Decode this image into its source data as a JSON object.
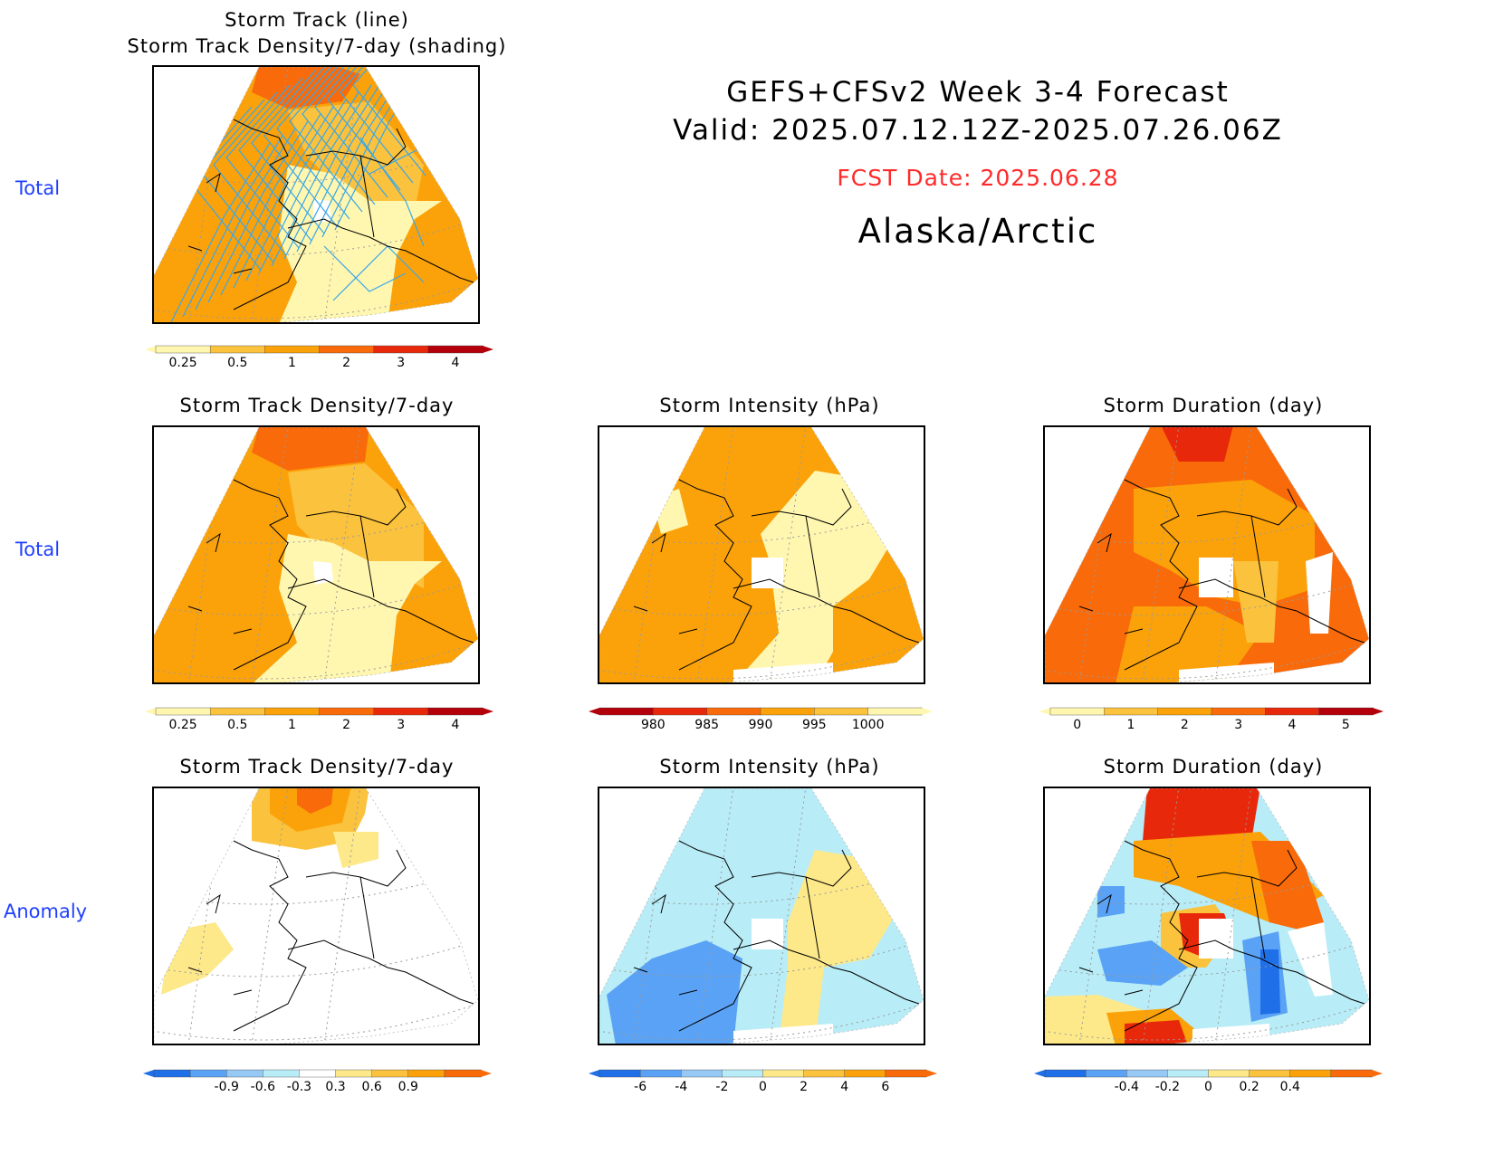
{
  "header": {
    "title_line1": "GEFS+CFSv2 Week 3-4 Forecast",
    "title_line2": "Valid: 2025.07.12.12Z-2025.07.26.06Z",
    "fcst_date": "FCST Date: 2025.06.28",
    "region": "Alaska/Arctic"
  },
  "row_labels": [
    "Total",
    "Total",
    "Anomaly"
  ],
  "colors": {
    "row_label": "#1f3fff",
    "fcst_date": "#ff2a2a",
    "track_line": "#3aa7e8"
  },
  "chart_data": [
    {
      "type": "heatmap",
      "title_line1": "Storm Track (line)",
      "title_line2": "Storm Track Density/7-day (shading)",
      "colorbar": {
        "ticks": [
          "0.25",
          "0.5",
          "1",
          "2",
          "3",
          "4"
        ],
        "colors": [
          "#fff7b0",
          "#fbc23d",
          "#fba20a",
          "#f96a0a",
          "#e8280a",
          "#b4000a"
        ]
      },
      "overlay": "storm track lines"
    },
    {
      "type": "heatmap",
      "title": "Storm Track Density/7-day",
      "colorbar": {
        "ticks": [
          "0.25",
          "0.5",
          "1",
          "2",
          "3",
          "4"
        ],
        "colors": [
          "#fff7b0",
          "#fbc23d",
          "#fba20a",
          "#f96a0a",
          "#e8280a",
          "#b4000a"
        ]
      }
    },
    {
      "type": "heatmap",
      "title": "Storm Intensity (hPa)",
      "colorbar": {
        "ticks": [
          "980",
          "985",
          "990",
          "995",
          "1000"
        ],
        "colors": [
          "#b4000a",
          "#e8280a",
          "#f96a0a",
          "#fba20a",
          "#fbc23d",
          "#fff7b0"
        ]
      }
    },
    {
      "type": "heatmap",
      "title": "Storm Duration (day)",
      "colorbar": {
        "ticks": [
          "0",
          "1",
          "2",
          "3",
          "4",
          "5"
        ],
        "colors": [
          "#fff7b0",
          "#fbc23d",
          "#fba20a",
          "#f96a0a",
          "#e8280a",
          "#b4000a"
        ]
      }
    },
    {
      "type": "heatmap",
      "title": "Storm Track Density/7-day",
      "colorbar": {
        "ticks": [
          "-0.9",
          "-0.6",
          "-0.3",
          "0.3",
          "0.6",
          "0.9"
        ],
        "colors": [
          "#1e6fe8",
          "#5aa2f5",
          "#96c9f5",
          "#b8ecf7",
          "#ffffff",
          "#fde98a",
          "#fbc23d",
          "#fba20a",
          "#f96a0a"
        ]
      }
    },
    {
      "type": "heatmap",
      "title": "Storm Intensity (hPa)",
      "colorbar": {
        "ticks": [
          "-6",
          "-4",
          "-2",
          "0",
          "2",
          "4",
          "6"
        ],
        "colors": [
          "#1e6fe8",
          "#5aa2f5",
          "#96c9f5",
          "#b8ecf7",
          "#fde98a",
          "#fbc23d",
          "#fba20a",
          "#f96a0a"
        ]
      }
    },
    {
      "type": "heatmap",
      "title": "Storm Duration (day)",
      "colorbar": {
        "ticks": [
          "-0.4",
          "-0.2",
          "0",
          "0.2",
          "0.4"
        ],
        "colors": [
          "#1e6fe8",
          "#5aa2f5",
          "#96c9f5",
          "#b8ecf7",
          "#fde98a",
          "#fbc23d",
          "#fba20a",
          "#f96a0a"
        ]
      }
    }
  ]
}
